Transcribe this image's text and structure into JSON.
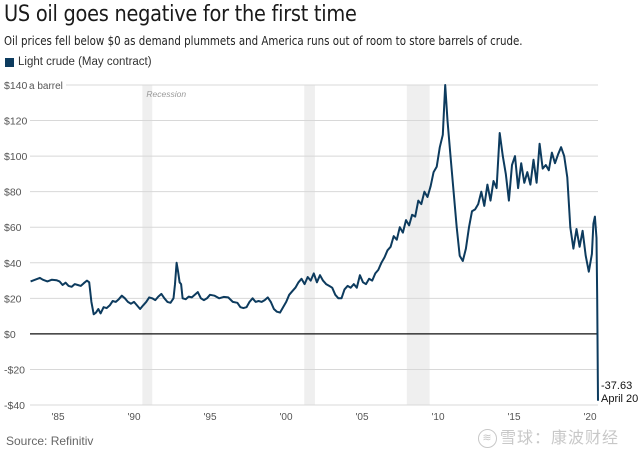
{
  "header": {
    "title": "US oil goes negative for the first time",
    "subtitle": "Oil prices fell below $0 as demand plummets and America runs out of room to store barrels of crude."
  },
  "legend": {
    "label": "Light crude (May contract)",
    "color": "#0d3b5e"
  },
  "footer": {
    "source": "Source: Refinitiv",
    "watermark": "雪球：康波财经",
    "watermark_icon": "snowball-logo-icon"
  },
  "chart_data": {
    "type": "line",
    "title": "US oil goes negative for the first time",
    "xlabel": "",
    "ylabel": "a barrel",
    "ylim": [
      -40,
      140
    ],
    "xlim": [
      1983.2,
      2020.3
    ],
    "grid": true,
    "legend_position": "top-left",
    "y_ticks": [
      140,
      120,
      100,
      80,
      60,
      40,
      20,
      0,
      -20,
      -40
    ],
    "y_tick_labels": [
      "$140",
      "$120",
      "$100",
      "$80",
      "$60",
      "$40",
      "$20",
      "$0",
      "-$20",
      "-$40"
    ],
    "y_unit_label": "a barrel",
    "x_ticks": [
      1985,
      1990,
      1995,
      2000,
      2005,
      2010,
      2015,
      2020
    ],
    "x_tick_labels": [
      "'85",
      "'90",
      "'95",
      "'00",
      "'05",
      "'10",
      "'15",
      "'20"
    ],
    "recessions": [
      {
        "start": 1990.55,
        "end": 1991.2,
        "label": "Recession"
      },
      {
        "start": 2001.2,
        "end": 2001.9,
        "label": ""
      },
      {
        "start": 2007.95,
        "end": 2009.45,
        "label": ""
      }
    ],
    "annotation": {
      "value": "-37.63",
      "date": "April 20",
      "x": 2020.3,
      "y": -37.63
    },
    "series": [
      {
        "name": "Light crude (May contract)",
        "color": "#0d3b5e",
        "points": [
          [
            1983.2,
            29.5
          ],
          [
            1983.5,
            30.5
          ],
          [
            1983.8,
            31.5
          ],
          [
            1984.0,
            30.5
          ],
          [
            1984.3,
            29.5
          ],
          [
            1984.6,
            30.5
          ],
          [
            1984.9,
            30.2
          ],
          [
            1985.1,
            29.5
          ],
          [
            1985.3,
            27.5
          ],
          [
            1985.5,
            28.8
          ],
          [
            1985.7,
            27
          ],
          [
            1985.9,
            26.5
          ],
          [
            1986.1,
            28
          ],
          [
            1986.3,
            27.5
          ],
          [
            1986.5,
            27
          ],
          [
            1986.7,
            28.5
          ],
          [
            1986.9,
            30
          ],
          [
            1987.05,
            29
          ],
          [
            1987.2,
            18
          ],
          [
            1987.35,
            11
          ],
          [
            1987.5,
            12
          ],
          [
            1987.65,
            14
          ],
          [
            1987.8,
            11.5
          ],
          [
            1988.0,
            15
          ],
          [
            1988.2,
            14.5
          ],
          [
            1988.4,
            16
          ],
          [
            1988.6,
            18.5
          ],
          [
            1988.8,
            18
          ],
          [
            1989.0,
            19.5
          ],
          [
            1989.2,
            21.5
          ],
          [
            1989.4,
            20
          ],
          [
            1989.6,
            18
          ],
          [
            1989.8,
            17
          ],
          [
            1990.0,
            18
          ],
          [
            1990.2,
            16
          ],
          [
            1990.4,
            14
          ],
          [
            1990.6,
            16
          ],
          [
            1990.8,
            18
          ],
          [
            1991.0,
            20.5
          ],
          [
            1991.2,
            20
          ],
          [
            1991.4,
            19
          ],
          [
            1991.6,
            21
          ],
          [
            1991.8,
            22.5
          ],
          [
            1992.0,
            20
          ],
          [
            1992.2,
            18
          ],
          [
            1992.4,
            17.5
          ],
          [
            1992.6,
            20
          ],
          [
            1992.7,
            28
          ],
          [
            1992.8,
            40
          ],
          [
            1992.9,
            35
          ],
          [
            1993.0,
            29
          ],
          [
            1993.1,
            28
          ],
          [
            1993.2,
            20
          ],
          [
            1993.4,
            19.5
          ],
          [
            1993.6,
            21
          ],
          [
            1993.8,
            20.5
          ],
          [
            1994.0,
            22
          ],
          [
            1994.2,
            23.5
          ],
          [
            1994.4,
            20
          ],
          [
            1994.6,
            19
          ],
          [
            1994.8,
            20
          ],
          [
            1995.0,
            22
          ],
          [
            1995.3,
            21.5
          ],
          [
            1995.6,
            20
          ],
          [
            1995.9,
            20.8
          ],
          [
            1996.2,
            20.5
          ],
          [
            1996.5,
            18
          ],
          [
            1996.8,
            17.5
          ],
          [
            1997.0,
            15
          ],
          [
            1997.2,
            14.5
          ],
          [
            1997.4,
            15
          ],
          [
            1997.6,
            18
          ],
          [
            1997.8,
            20
          ],
          [
            1998.0,
            18
          ],
          [
            1998.2,
            18.5
          ],
          [
            1998.4,
            18
          ],
          [
            1998.6,
            19
          ],
          [
            1998.8,
            20.5
          ],
          [
            1999.0,
            18
          ]
        ]
      }
    ]
  }
}
